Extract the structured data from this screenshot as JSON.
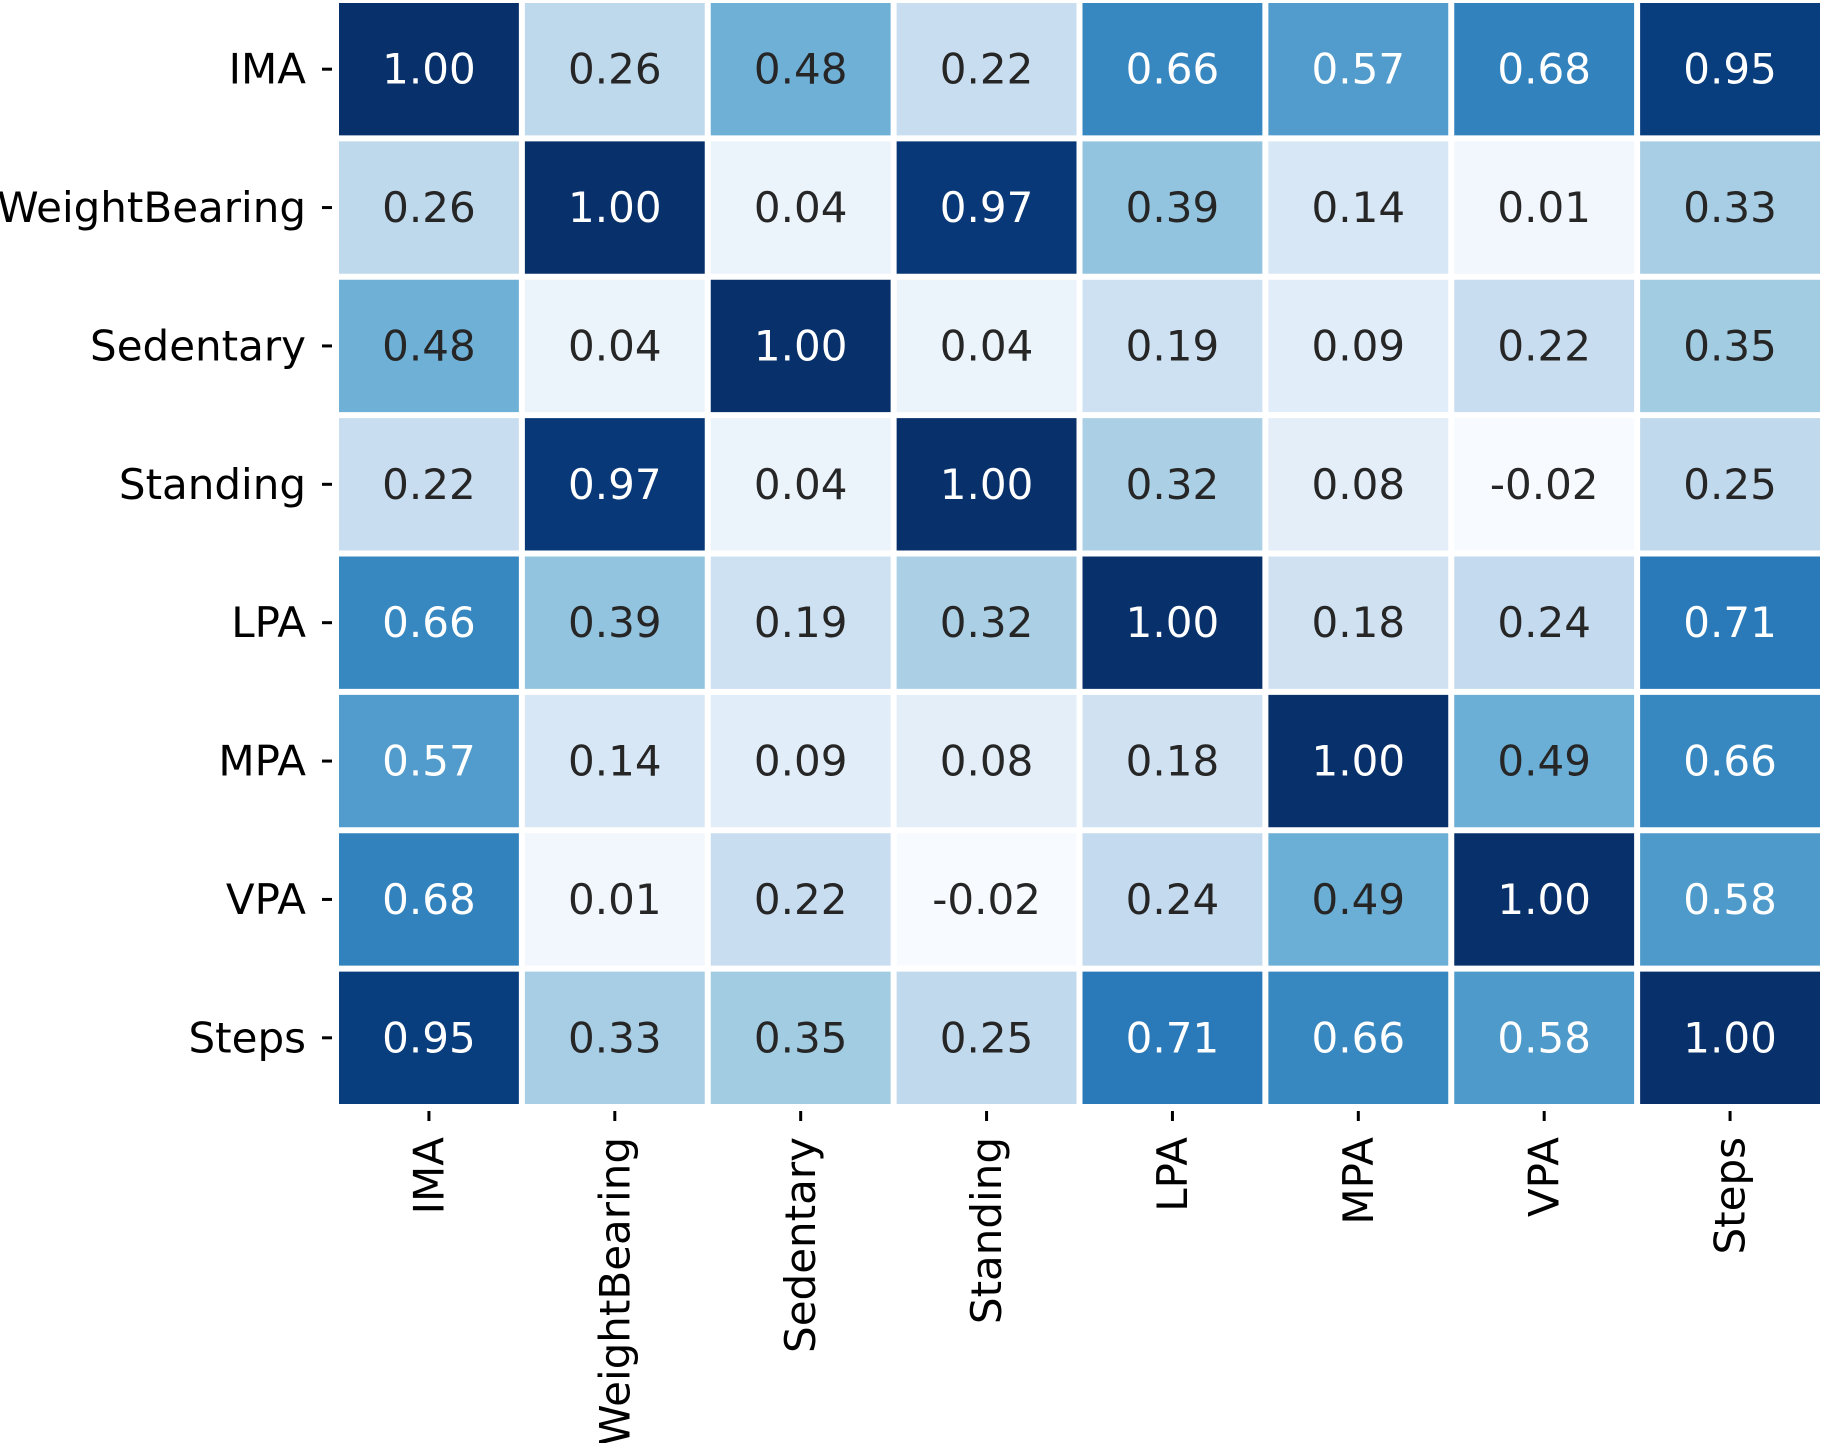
{
  "chart_data": {
    "type": "heatmap",
    "title": "",
    "xlabel": "",
    "ylabel": "",
    "row_labels": [
      "IMA",
      "WeightBearing",
      "Sedentary",
      "Standing",
      "LPA",
      "MPA",
      "VPA",
      "Steps"
    ],
    "col_labels": [
      "IMA",
      "WeightBearing",
      "Sedentary",
      "Standing",
      "LPA",
      "MPA",
      "VPA",
      "Steps"
    ],
    "values": [
      [
        1.0,
        0.26,
        0.48,
        0.22,
        0.66,
        0.57,
        0.68,
        0.95
      ],
      [
        0.26,
        1.0,
        0.04,
        0.97,
        0.39,
        0.14,
        0.01,
        0.33
      ],
      [
        0.48,
        0.04,
        1.0,
        0.04,
        0.19,
        0.09,
        0.22,
        0.35
      ],
      [
        0.22,
        0.97,
        0.04,
        1.0,
        0.32,
        0.08,
        -0.02,
        0.25
      ],
      [
        0.66,
        0.39,
        0.19,
        0.32,
        1.0,
        0.18,
        0.24,
        0.71
      ],
      [
        0.57,
        0.14,
        0.09,
        0.08,
        0.18,
        1.0,
        0.49,
        0.66
      ],
      [
        0.68,
        0.01,
        0.22,
        -0.02,
        0.24,
        0.49,
        1.0,
        0.58
      ],
      [
        0.95,
        0.33,
        0.35,
        0.25,
        0.71,
        0.66,
        0.58,
        1.0
      ]
    ],
    "value_format": "2 decimals",
    "colormap": "Blues",
    "color_range": [
      -0.02,
      1.0
    ],
    "colorbar": false,
    "cell_border_color": "#ffffff",
    "grid": false,
    "legend": "none"
  }
}
